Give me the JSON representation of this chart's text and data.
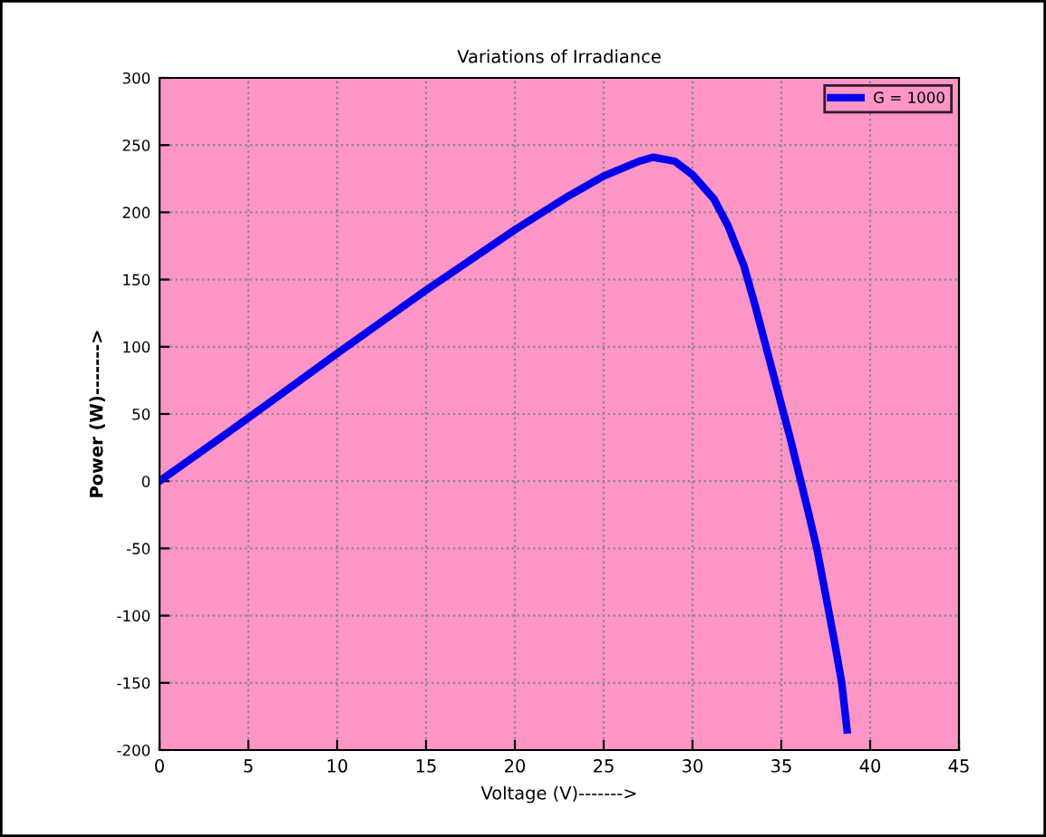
{
  "chart_data": {
    "type": "line",
    "title": "Variations of Irradiance",
    "xlabel": "Voltage (V)------->",
    "ylabel": "Power (W)------->",
    "series": [
      {
        "name": "G = 1000",
        "color": "#0000ee",
        "x": [
          0,
          5,
          10,
          15,
          20,
          23,
          25,
          27,
          27.8,
          29,
          30,
          31.2,
          32,
          32.9,
          33.5,
          34.2,
          35,
          35.5,
          36,
          36.5,
          37,
          37.5,
          38,
          38.4,
          38.7
        ],
        "values": [
          0,
          47,
          95,
          142,
          187,
          212,
          227,
          238,
          241,
          238,
          228,
          210,
          190,
          160,
          132,
          97,
          57,
          32,
          5,
          -22,
          -50,
          -85,
          -120,
          -150,
          -185
        ]
      }
    ],
    "xlim": [
      0,
      45
    ],
    "xticks": [
      0,
      5,
      10,
      15,
      20,
      25,
      30,
      35,
      40,
      45
    ],
    "ylim": [
      -200,
      300
    ],
    "yticks": [
      -200,
      -150,
      -100,
      -50,
      0,
      50,
      100,
      150,
      200,
      250,
      300
    ],
    "grid": true,
    "legend": "top right",
    "line_style": "solid",
    "marker": "none"
  }
}
